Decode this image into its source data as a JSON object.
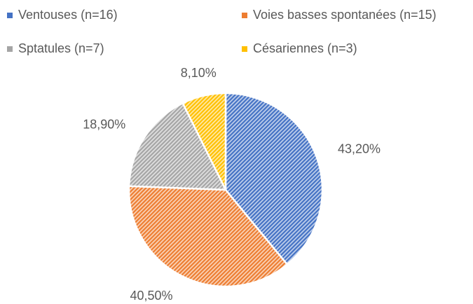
{
  "chart_data": {
    "type": "pie",
    "categories": [
      "Ventouses (n=16)",
      "Voies basses spontanées (n=15)",
      "Sptatules (n=7)",
      "Césariennes (n=3)"
    ],
    "values": [
      43.2,
      40.5,
      18.9,
      8.1
    ],
    "value_labels": [
      "43,20%",
      "40,50%",
      "18,90%",
      "8,10%"
    ],
    "colors": [
      "#4472c4",
      "#ed7d31",
      "#a5a5a5",
      "#ffc000"
    ],
    "legend": "top"
  }
}
